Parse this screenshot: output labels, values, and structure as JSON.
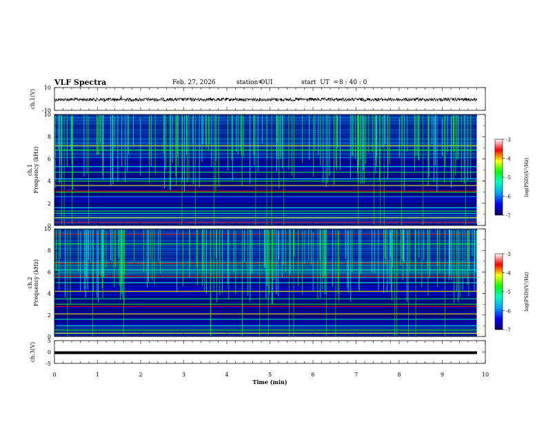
{
  "header": {
    "title": "VLF Spectra",
    "date": "Feb. 27, 2026",
    "station_label": "station=",
    "station": "OUI",
    "start_label": "start  UT  =",
    "start_time": "8 : 40 : 0"
  },
  "colors": {
    "spectro_bg": "#000a8a",
    "wave": "#000000",
    "colormap": [
      "#080060",
      "#0000ff",
      "#00a0ff",
      "#00ffc8",
      "#00ff00",
      "#ffff00",
      "#ff0000",
      "#ffffff"
    ]
  },
  "chart_data": [
    {
      "type": "line",
      "name": "ch1-waveform",
      "ylabel": "ch.1(V)",
      "ylim": [
        -10,
        10
      ],
      "yticks": [
        "10",
        "-10"
      ],
      "xlim": [
        0,
        10
      ],
      "description_level": -0.5,
      "spikes": [
        {
          "x": 1.55,
          "y": 3
        },
        {
          "x": 1.15,
          "y": -2.5
        }
      ]
    },
    {
      "type": "heatmap",
      "name": "ch1-spectrogram",
      "ylabel": "ch.1\nFrequency  (kHz)",
      "ylim": [
        0,
        10
      ],
      "yticks": [
        "0",
        "2",
        "4",
        "6",
        "8",
        "10"
      ],
      "xlim": [
        0,
        10
      ],
      "data_end_min": 9.8,
      "bands": [
        {
          "f": 0.3,
          "level": 6
        },
        {
          "f": 0.7,
          "level": 5
        },
        {
          "f": 1.1,
          "level": 3
        },
        {
          "f": 1.3,
          "level": 4
        },
        {
          "f": 1.6,
          "level": 3
        },
        {
          "f": 2.6,
          "level": 2
        },
        {
          "f": 3.0,
          "level": 4
        },
        {
          "f": 3.1,
          "level": 6
        },
        {
          "f": 3.6,
          "level": 5
        },
        {
          "f": 4.0,
          "level": 4
        },
        {
          "f": 4.2,
          "level": 3
        },
        {
          "f": 4.8,
          "level": 4
        },
        {
          "f": 5.3,
          "level": 3
        },
        {
          "f": 6.8,
          "level": 4
        },
        {
          "f": 7.2,
          "level": 5
        }
      ],
      "colorbar": {
        "label": "log(PSD)(V²/Hz)",
        "range": [
          -7,
          -3
        ],
        "ticks": [
          "-3",
          "-4",
          "-5",
          "-6",
          "-7"
        ]
      }
    },
    {
      "type": "heatmap",
      "name": "ch2-spectrogram",
      "ylabel": "ch.2\nFrequency  (kHz)",
      "ylim": [
        0,
        10
      ],
      "yticks": [
        "0",
        "2",
        "4",
        "6",
        "8",
        "10"
      ],
      "xlim": [
        0,
        10
      ],
      "data_end_min": 9.8,
      "bands": [
        {
          "f": 0.3,
          "level": 5
        },
        {
          "f": 0.6,
          "level": 4
        },
        {
          "f": 1.0,
          "level": 3
        },
        {
          "f": 1.6,
          "level": 3
        },
        {
          "f": 2.1,
          "level": 5
        },
        {
          "f": 2.8,
          "level": 6
        },
        {
          "f": 3.0,
          "level": 4
        },
        {
          "f": 3.5,
          "level": 4
        },
        {
          "f": 4.2,
          "level": 5
        },
        {
          "f": 5.0,
          "level": 3
        },
        {
          "f": 5.6,
          "level": 6
        },
        {
          "f": 6.2,
          "level": 3
        },
        {
          "f": 6.8,
          "level": 6
        },
        {
          "f": 8.6,
          "level": 4
        },
        {
          "f": 9.5,
          "level": 6
        }
      ],
      "colorbar": {
        "label": "log(PSD)(V²/Hz)",
        "range": [
          -7,
          -3
        ],
        "ticks": [
          "-3",
          "-4",
          "-5",
          "-6",
          "-7"
        ]
      }
    },
    {
      "type": "line",
      "name": "ch3-waveform",
      "ylabel": "ch.3(V)",
      "ylim": [
        -5,
        5
      ],
      "yticks": [
        "5",
        "0",
        "-5"
      ],
      "xlim": [
        0,
        10
      ],
      "level": -0.3
    }
  ],
  "xaxis": {
    "label": "Time  (min)",
    "ticks": [
      "0",
      "1",
      "2",
      "3",
      "4",
      "5",
      "6",
      "7",
      "8",
      "9",
      "10"
    ]
  }
}
